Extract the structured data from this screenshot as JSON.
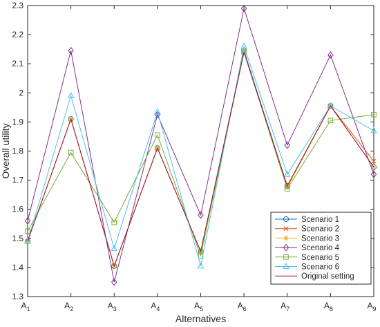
{
  "chart_data": {
    "type": "line",
    "xlabel": "Alternatives",
    "ylabel": "Overall utility",
    "ylim": [
      1.3,
      2.3
    ],
    "yticks": [
      "1.3",
      "1.4",
      "1.5",
      "1.6",
      "1.7",
      "1.8",
      "1.9",
      "2",
      "2.1",
      "2.2",
      "2.3"
    ],
    "categories": [
      {
        "base": "A",
        "sub": "1"
      },
      {
        "base": "A",
        "sub": "2"
      },
      {
        "base": "A",
        "sub": "3"
      },
      {
        "base": "A",
        "sub": "4"
      },
      {
        "base": "A",
        "sub": "5"
      },
      {
        "base": "A",
        "sub": "6"
      },
      {
        "base": "A",
        "sub": "7"
      },
      {
        "base": "A",
        "sub": "8"
      },
      {
        "base": "A",
        "sub": "9"
      }
    ],
    "grid": false,
    "legend_position": "bottom-right",
    "series": [
      {
        "name": "Scenario 1",
        "color": "#0072BD",
        "marker": "circle",
        "values": [
          1.49,
          1.91,
          1.405,
          1.81,
          1.455,
          2.145,
          1.68,
          1.955,
          1.745
        ]
      },
      {
        "name": "Scenario 2",
        "color": "#D95319",
        "marker": "x",
        "values": [
          1.49,
          1.91,
          1.405,
          1.81,
          1.455,
          2.14,
          1.68,
          1.955,
          1.765
        ]
      },
      {
        "name": "Scenario 3",
        "color": "#EDB120",
        "marker": "asterisk",
        "values": [
          1.49,
          1.91,
          1.405,
          1.81,
          1.455,
          2.14,
          1.675,
          1.955,
          1.745
        ]
      },
      {
        "name": "Scenario 4",
        "color": "#7E2F8E",
        "marker": "diamond",
        "values": [
          1.56,
          2.145,
          1.35,
          1.925,
          1.58,
          2.29,
          1.82,
          2.13,
          1.72
        ]
      },
      {
        "name": "Scenario 5",
        "color": "#77AC30",
        "marker": "square",
        "values": [
          1.525,
          1.795,
          1.555,
          1.855,
          1.44,
          2.14,
          1.67,
          1.905,
          1.925
        ]
      },
      {
        "name": "Scenario 6",
        "color": "#4DBEEE",
        "marker": "triangle",
        "values": [
          1.49,
          1.99,
          1.465,
          1.935,
          1.405,
          2.16,
          1.72,
          1.955,
          1.87
        ]
      },
      {
        "name": "Original setting",
        "color": "#A2142F",
        "marker": "none",
        "values": [
          1.49,
          1.91,
          1.405,
          1.81,
          1.455,
          2.14,
          1.68,
          1.955,
          1.745
        ]
      }
    ]
  }
}
